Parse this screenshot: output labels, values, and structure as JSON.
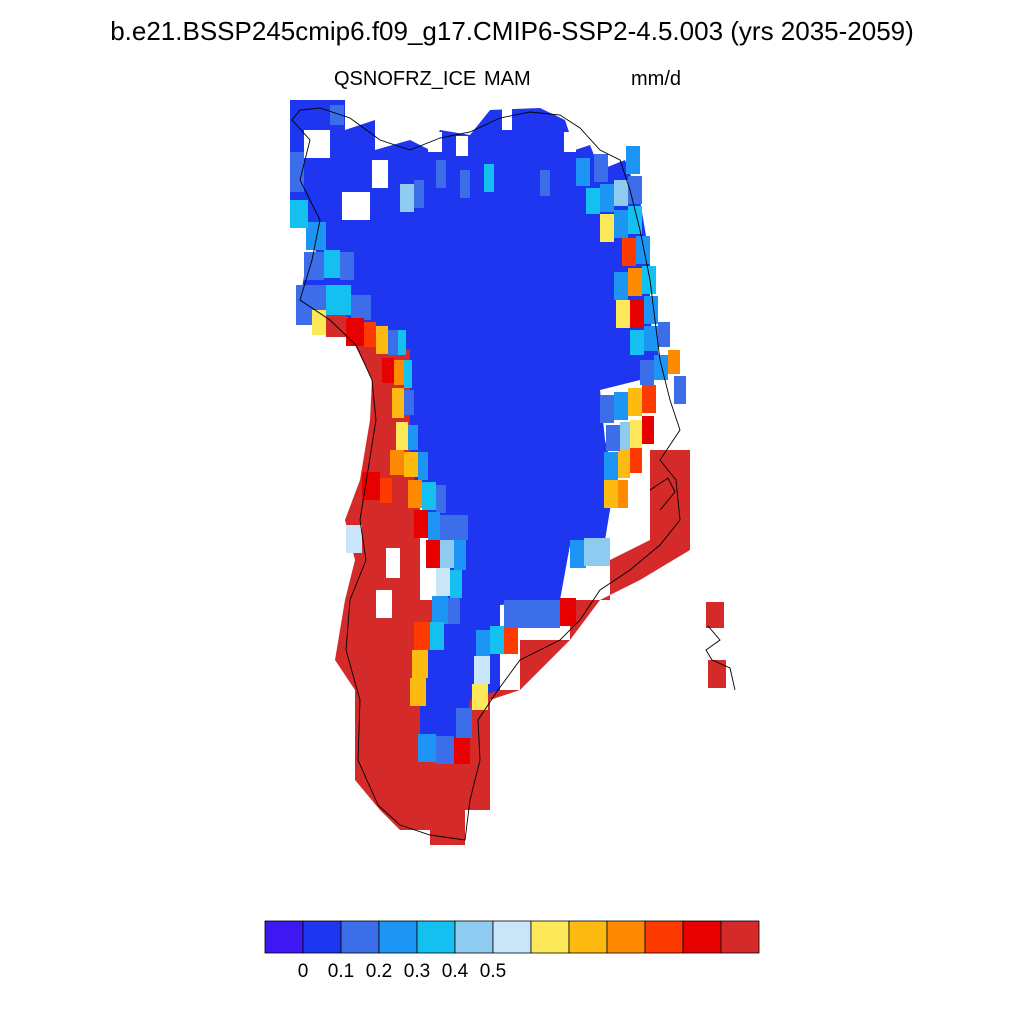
{
  "title": "b.e21.BSSP245cmip6.f09_g17.CMIP6-SSP2-4.5.003 (yrs 2035-2059)",
  "subtitle_left": "QSNOFRZ_ICE",
  "subtitle_center": "MAM",
  "subtitle_right": "mm/d",
  "colorbar": {
    "colors": [
      "#3f17f3",
      "#1f36f0",
      "#3b6ee8",
      "#1d95f4",
      "#14c0f0",
      "#8fcaf0",
      "#c8e6f8",
      "#fde85a",
      "#fdbb12",
      "#fd8a00",
      "#fd3a00",
      "#e60000",
      "#d42a2a"
    ],
    "tick_labels": [
      "0",
      "0.1",
      "0.2",
      "0.3",
      "0.4",
      "0.5"
    ]
  }
}
